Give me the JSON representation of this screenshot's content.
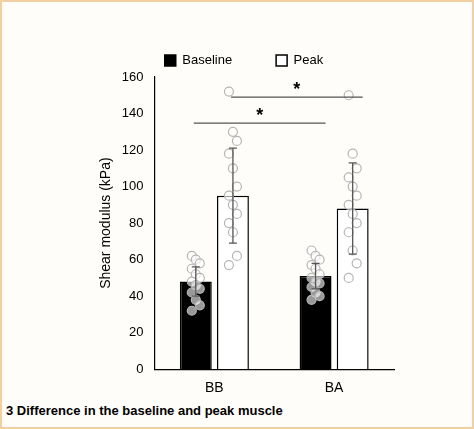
{
  "chart_data": {
    "type": "bar",
    "caption": "3 Difference in the baseline and peak muscle",
    "y_label": "Shear modulus (kPa)",
    "categories": [
      "BB",
      "BA"
    ],
    "series": [
      {
        "name": "Baseline",
        "color": "#000000",
        "values": [
          48,
          51
        ],
        "error": [
          8,
          7
        ],
        "points": [
          [
            62,
            60,
            58,
            55,
            52,
            50,
            48,
            46,
            44,
            42,
            38,
            35,
            32
          ],
          [
            65,
            62,
            60,
            57,
            55,
            52,
            50,
            48,
            47,
            45,
            42,
            40,
            38
          ]
        ]
      },
      {
        "name": "Peak",
        "color": "#ffffff",
        "values": [
          95,
          88
        ],
        "error": [
          26,
          25
        ],
        "points": [
          [
            152,
            130,
            125,
            118,
            110,
            100,
            95,
            90,
            85,
            80,
            75,
            62,
            57
          ],
          [
            150,
            118,
            110,
            105,
            100,
            95,
            90,
            85,
            80,
            75,
            65,
            58,
            50
          ]
        ]
      }
    ],
    "annotations": [
      {
        "text": "*",
        "series": "Baseline"
      },
      {
        "text": "*",
        "series": "Peak"
      }
    ],
    "ylim": [
      0,
      160
    ],
    "yticks": [
      0,
      20,
      40,
      60,
      80,
      100,
      120,
      140,
      160
    ],
    "grid": false,
    "legend": "top"
  }
}
